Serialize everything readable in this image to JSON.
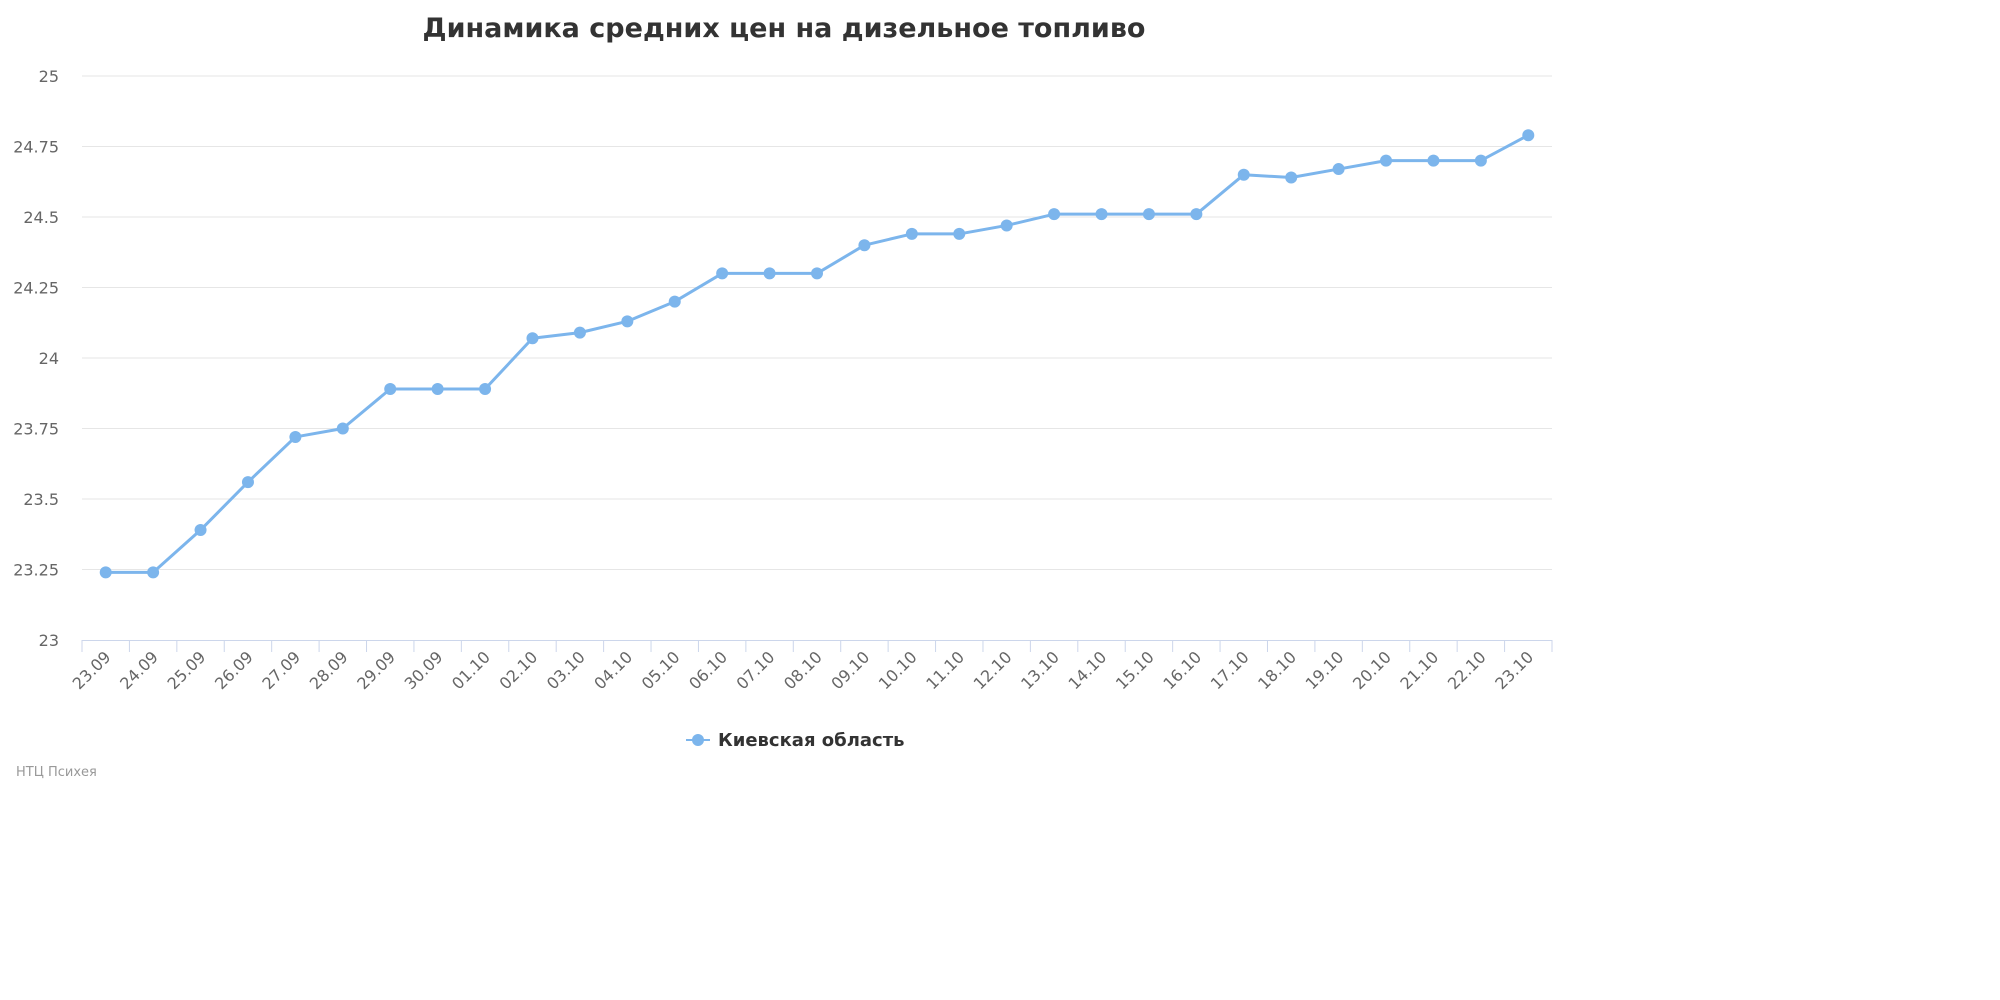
{
  "chart_data": {
    "type": "line",
    "title": "Динамика средних цен на дизельное топливо",
    "xlabel": "",
    "ylabel": "",
    "categories": [
      "23.09",
      "24.09",
      "25.09",
      "26.09",
      "27.09",
      "28.09",
      "29.09",
      "30.09",
      "01.10",
      "02.10",
      "03.10",
      "04.10",
      "05.10",
      "06.10",
      "07.10",
      "08.10",
      "09.10",
      "10.10",
      "11.10",
      "12.10",
      "13.10",
      "14.10",
      "15.10",
      "16.10",
      "17.10",
      "18.10",
      "19.10",
      "20.10",
      "21.10",
      "22.10",
      "23.10"
    ],
    "series": [
      {
        "name": "Киевская область",
        "color": "#7cb5ec",
        "values": [
          23.24,
          23.24,
          23.39,
          23.56,
          23.72,
          23.75,
          23.89,
          23.89,
          23.89,
          24.07,
          24.09,
          24.13,
          24.2,
          24.3,
          24.3,
          24.3,
          24.4,
          24.44,
          24.44,
          24.47,
          24.51,
          24.51,
          24.51,
          24.51,
          24.65,
          24.64,
          24.67,
          24.7,
          24.7,
          24.7,
          24.79
        ]
      }
    ],
    "ylim": [
      23,
      25
    ],
    "yticks": [
      "23",
      "23.25",
      "23.5",
      "23.75",
      "24",
      "24.25",
      "24.5",
      "24.75",
      "25"
    ],
    "grid": true,
    "legend_position": "bottom-center"
  },
  "credits": "НТЦ Психея"
}
